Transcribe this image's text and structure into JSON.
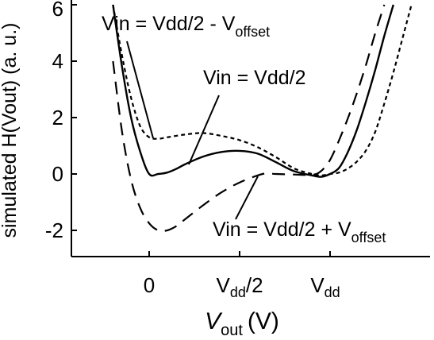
{
  "chart_data": {
    "type": "line",
    "xlabel": {
      "main": "V",
      "sub": "out",
      "unit": "(V)"
    },
    "ylabel": "simulated H(Vout) (a. u.)",
    "xlim": [
      -0.2,
      1.45
    ],
    "ylim": [
      -3,
      6
    ],
    "yticks": [
      "-2",
      "0",
      "2",
      "4",
      "6"
    ],
    "ytick_values": [
      -2,
      0,
      2,
      4,
      6
    ],
    "xticks": [
      {
        "value": 0,
        "main": "0",
        "sub": ""
      },
      {
        "value": 0.5,
        "main": "V",
        "sub": "dd",
        "post": "/2"
      },
      {
        "value": 1.0,
        "main": "V",
        "sub": "dd",
        "post": ""
      }
    ],
    "grid": false,
    "series": [
      {
        "style": "solid",
        "x": [
          -0.2,
          -0.15,
          -0.1,
          -0.05,
          0,
          0.05,
          0.1,
          0.15,
          0.2,
          0.3,
          0.4,
          0.5,
          0.6,
          0.7,
          0.8,
          0.9,
          0.95,
          1.0,
          1.05,
          1.1,
          1.15,
          1.2,
          1.25,
          1.3,
          1.35
        ],
        "y": [
          6,
          3.8,
          2.0,
          0.8,
          0.0,
          0.0,
          0.05,
          0.18,
          0.35,
          0.62,
          0.78,
          0.82,
          0.72,
          0.42,
          0.1,
          -0.05,
          -0.1,
          0.0,
          0.22,
          0.8,
          1.6,
          2.6,
          3.7,
          4.9,
          6.0
        ]
      },
      {
        "style": "dotted",
        "x": [
          -0.2,
          -0.15,
          -0.1,
          -0.05,
          0,
          0.05,
          0.1,
          0.2,
          0.3,
          0.4,
          0.5,
          0.6,
          0.7,
          0.8,
          0.9,
          0.95,
          1.0,
          1.05,
          1.1,
          1.15,
          1.2,
          1.25,
          1.3,
          1.35,
          1.4,
          1.45
        ],
        "y": [
          6.0,
          4.2,
          2.7,
          1.7,
          1.3,
          1.25,
          1.3,
          1.4,
          1.45,
          1.35,
          1.2,
          0.95,
          0.6,
          0.2,
          0.0,
          -0.05,
          0.0,
          0.05,
          0.2,
          0.45,
          0.85,
          1.5,
          2.5,
          3.6,
          4.8,
          6.0
        ]
      },
      {
        "style": "dashed",
        "x": [
          -0.2,
          -0.15,
          -0.1,
          -0.05,
          0,
          0.05,
          0.1,
          0.15,
          0.2,
          0.3,
          0.4,
          0.5,
          0.6,
          0.65,
          0.7,
          0.8,
          0.9,
          0.95,
          1.0,
          1.05,
          1.1,
          1.15,
          1.2,
          1.25,
          1.3
        ],
        "y": [
          4.0,
          1.5,
          -0.2,
          -1.2,
          -1.75,
          -2.0,
          -2.0,
          -1.85,
          -1.6,
          -1.1,
          -0.65,
          -0.3,
          -0.05,
          0.02,
          0.0,
          -0.02,
          -0.03,
          0.1,
          0.5,
          1.2,
          2.0,
          2.9,
          3.9,
          5.0,
          6.0
        ]
      }
    ],
    "annotations": [
      {
        "main": "Vin = Vdd/2 - V",
        "sub": "offset"
      },
      {
        "main": "Vin = Vdd/2",
        "sub": ""
      },
      {
        "main": "Vin = Vdd/2 + V",
        "sub": "offset"
      }
    ]
  }
}
